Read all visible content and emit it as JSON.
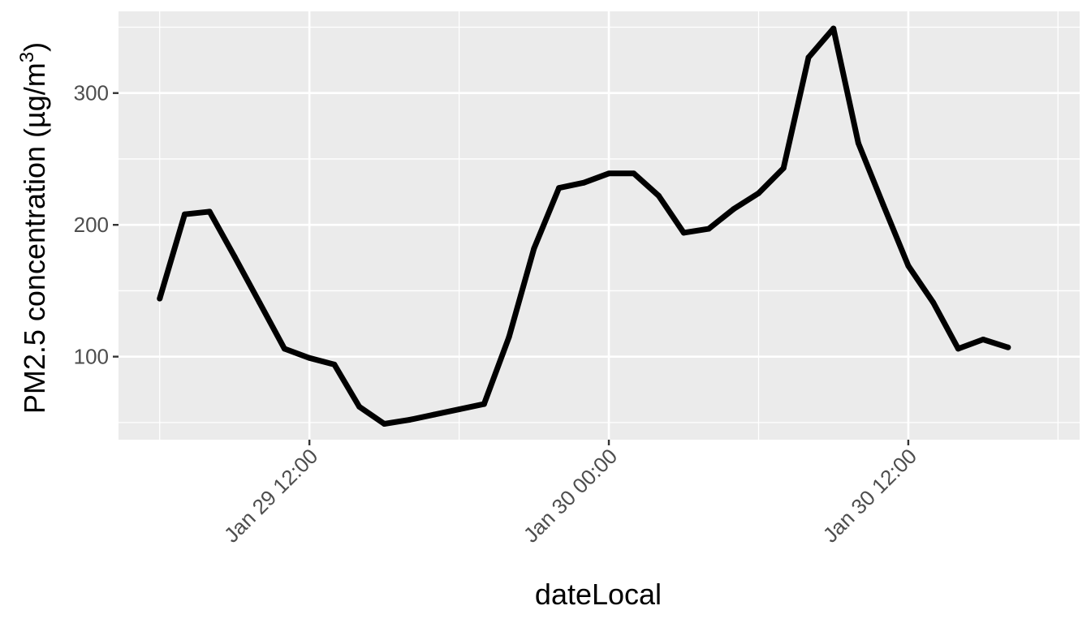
{
  "chart_data": {
    "type": "line",
    "xlabel": "dateLocal",
    "ylabel_main": "PM2.5 concentration (µg/m",
    "ylabel_sup": "3",
    "ylabel_close": ")",
    "ylim": [
      37,
      362
    ],
    "yticks": [
      100,
      200,
      300
    ],
    "xlim": [
      "2015-01-29 04:21",
      "2015-01-30 18:52"
    ],
    "xticks": [
      {
        "t": "2015-01-29 12:00",
        "label": "Jan 29 12:00"
      },
      {
        "t": "2015-01-30 00:00",
        "label": "Jan 30 00:00"
      },
      {
        "t": "2015-01-30 12:00",
        "label": "Jan 30 12:00"
      }
    ],
    "grid": true,
    "background": "#ebebeb",
    "line_color": "#000000",
    "series": [
      {
        "points": [
          {
            "x": "2015-01-29 06:00",
            "y": 144
          },
          {
            "x": "2015-01-29 07:00",
            "y": 208
          },
          {
            "x": "2015-01-29 08:00",
            "y": 210
          },
          {
            "x": "2015-01-29 09:00",
            "y": 176
          },
          {
            "x": "2015-01-29 10:00",
            "y": 141
          },
          {
            "x": "2015-01-29 11:00",
            "y": 106
          },
          {
            "x": "2015-01-29 12:00",
            "y": 99
          },
          {
            "x": "2015-01-29 13:00",
            "y": 94
          },
          {
            "x": "2015-01-29 14:00",
            "y": 62
          },
          {
            "x": "2015-01-29 15:00",
            "y": 49
          },
          {
            "x": "2015-01-29 16:00",
            "y": 52
          },
          {
            "x": "2015-01-29 17:00",
            "y": 56
          },
          {
            "x": "2015-01-29 18:00",
            "y": 60
          },
          {
            "x": "2015-01-29 19:00",
            "y": 64
          },
          {
            "x": "2015-01-29 20:00",
            "y": 115
          },
          {
            "x": "2015-01-29 21:00",
            "y": 182
          },
          {
            "x": "2015-01-29 22:00",
            "y": 228
          },
          {
            "x": "2015-01-29 23:00",
            "y": 232
          },
          {
            "x": "2015-01-30 00:00",
            "y": 239
          },
          {
            "x": "2015-01-30 01:00",
            "y": 239
          },
          {
            "x": "2015-01-30 02:00",
            "y": 222
          },
          {
            "x": "2015-01-30 03:00",
            "y": 194
          },
          {
            "x": "2015-01-30 04:00",
            "y": 197
          },
          {
            "x": "2015-01-30 05:00",
            "y": 212
          },
          {
            "x": "2015-01-30 06:00",
            "y": 224
          },
          {
            "x": "2015-01-30 07:00",
            "y": 243
          },
          {
            "x": "2015-01-30 08:00",
            "y": 327
          },
          {
            "x": "2015-01-30 09:00",
            "y": 349
          },
          {
            "x": "2015-01-30 10:00",
            "y": 262
          },
          {
            "x": "2015-01-30 11:00",
            "y": 215
          },
          {
            "x": "2015-01-30 12:00",
            "y": 169
          },
          {
            "x": "2015-01-30 13:00",
            "y": 141
          },
          {
            "x": "2015-01-30 14:00",
            "y": 106
          },
          {
            "x": "2015-01-30 15:00",
            "y": 113
          },
          {
            "x": "2015-01-30 16:00",
            "y": 107
          }
        ]
      }
    ]
  }
}
